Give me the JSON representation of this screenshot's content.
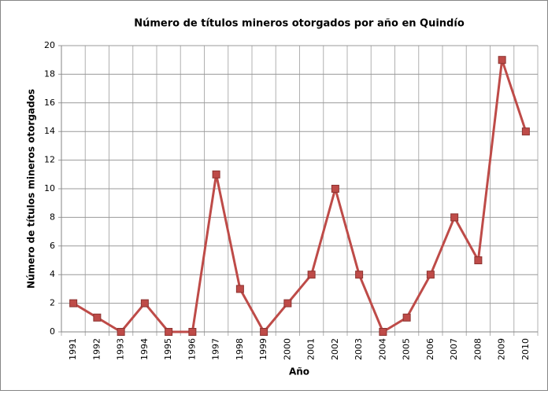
{
  "chart_data": {
    "type": "line",
    "title": "Número de títulos mineros otorgados por año en Quindío",
    "x_label": "Año",
    "y_label": "Número de títulos mineros otorgados",
    "categories": [
      "1991",
      "1992",
      "1993",
      "1994",
      "1995",
      "1996",
      "1997",
      "1998",
      "1999",
      "2000",
      "2001",
      "2002",
      "2003",
      "2004",
      "2005",
      "2006",
      "2007",
      "2008",
      "2009",
      "2010"
    ],
    "values": [
      2,
      1,
      0,
      2,
      0,
      0,
      11,
      3,
      0,
      2,
      4,
      10,
      4,
      0,
      1,
      4,
      8,
      5,
      19,
      14
    ],
    "color": "#be4b48",
    "ylim": [
      0,
      20
    ],
    "yticks": [
      0,
      2,
      4,
      6,
      8,
      10,
      12,
      14,
      16,
      18,
      20
    ],
    "grid": true
  }
}
